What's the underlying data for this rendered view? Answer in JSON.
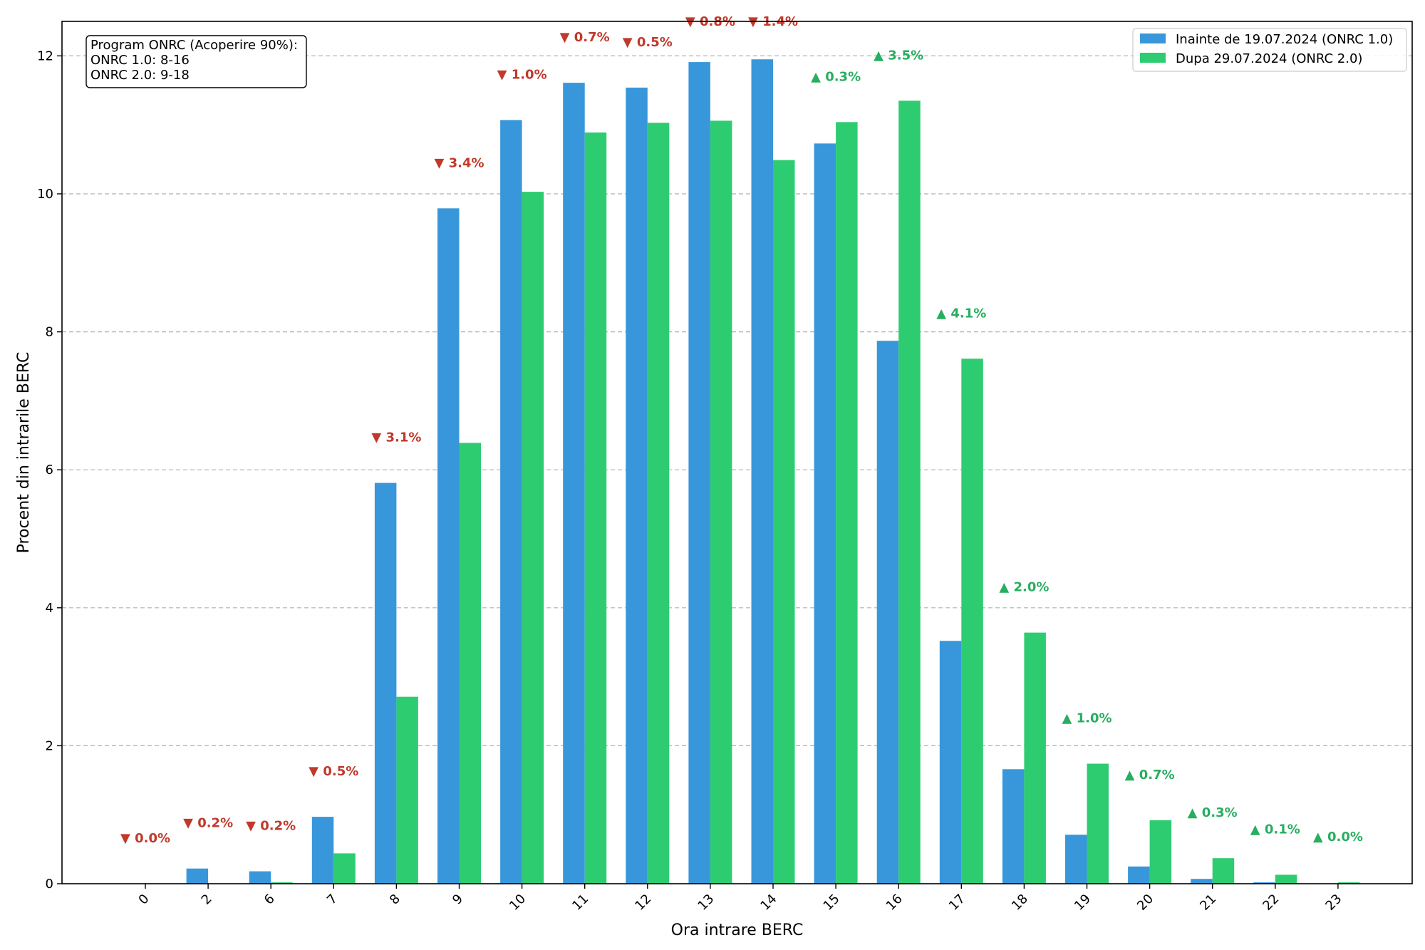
{
  "chart_data": {
    "type": "bar",
    "xlabel": "Ora intrare BERC",
    "ylabel": "Procent din intrarile BERC",
    "ylim": [
      0,
      12.5
    ],
    "yticks": [
      0,
      2,
      4,
      6,
      8,
      10,
      12
    ],
    "grid": "y-dashed",
    "legend_position": "top-right",
    "categories": [
      "0",
      "2",
      "6",
      "7",
      "8",
      "9",
      "10",
      "11",
      "12",
      "13",
      "14",
      "15",
      "16",
      "17",
      "18",
      "19",
      "20",
      "21",
      "22",
      "23"
    ],
    "series": [
      {
        "name": "Inainte de 19.07.2024 (ONRC 1.0)",
        "color": "#3897db",
        "values": [
          0.0,
          0.22,
          0.18,
          0.97,
          5.81,
          9.79,
          11.07,
          11.61,
          11.54,
          11.91,
          11.95,
          10.73,
          7.87,
          3.52,
          1.66,
          0.71,
          0.25,
          0.07,
          0.02,
          0.0
        ]
      },
      {
        "name": "Dupa 29.07.2024 (ONRC 2.0)",
        "color": "#2ecc71",
        "values": [
          0.0,
          0.0,
          0.02,
          0.44,
          2.71,
          6.39,
          10.03,
          10.89,
          11.03,
          11.06,
          10.49,
          11.04,
          11.35,
          7.61,
          3.64,
          1.74,
          0.92,
          0.37,
          0.13,
          0.02
        ]
      }
    ],
    "annotations": [
      {
        "text": "▼ 0.0%",
        "color": "#c0392b"
      },
      {
        "text": "▼ 0.2%",
        "color": "#c0392b"
      },
      {
        "text": "▼ 0.2%",
        "color": "#c0392b"
      },
      {
        "text": "▼ 0.5%",
        "color": "#c0392b"
      },
      {
        "text": "▼ 3.1%",
        "color": "#c0392b"
      },
      {
        "text": "▼ 3.4%",
        "color": "#c0392b"
      },
      {
        "text": "▼ 1.0%",
        "color": "#c0392b"
      },
      {
        "text": "▼ 0.7%",
        "color": "#c0392b"
      },
      {
        "text": "▼ 0.5%",
        "color": "#c0392b"
      },
      {
        "text": "▼ 0.8%",
        "color": "#c0392b"
      },
      {
        "text": "▼ 1.4%",
        "color": "#c0392b"
      },
      {
        "text": "▲ 0.3%",
        "color": "#27ae60"
      },
      {
        "text": "▲ 3.5%",
        "color": "#27ae60"
      },
      {
        "text": "▲ 4.1%",
        "color": "#27ae60"
      },
      {
        "text": "▲ 2.0%",
        "color": "#27ae60"
      },
      {
        "text": "▲ 1.0%",
        "color": "#27ae60"
      },
      {
        "text": "▲ 0.7%",
        "color": "#27ae60"
      },
      {
        "text": "▲ 0.3%",
        "color": "#27ae60"
      },
      {
        "text": "▲ 0.1%",
        "color": "#27ae60"
      },
      {
        "text": "▲ 0.0%",
        "color": "#27ae60"
      }
    ],
    "note": {
      "lines": [
        "Program ONRC (Acoperire 90%):",
        "ONRC 1.0: 8-16",
        "ONRC 2.0: 9-18"
      ]
    }
  }
}
